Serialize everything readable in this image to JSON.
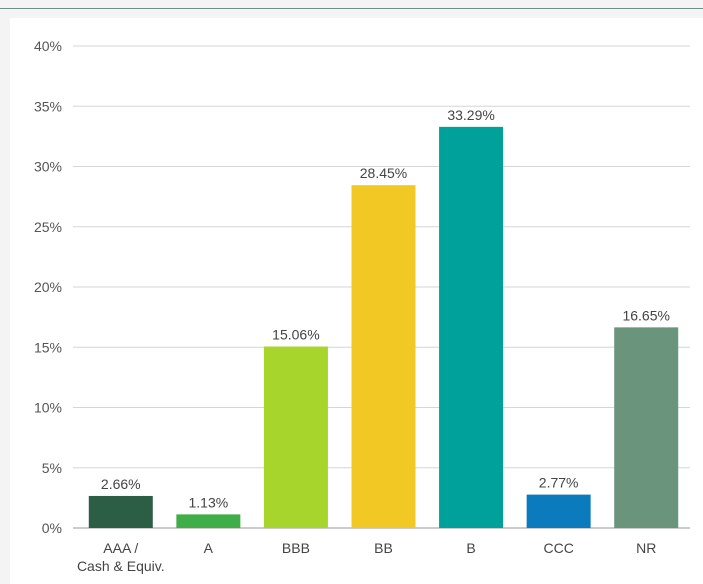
{
  "chart_data": {
    "type": "bar",
    "categories": [
      "AAA / Cash & Equiv.",
      "A",
      "BBB",
      "BB",
      "B",
      "CCC",
      "NR"
    ],
    "category_lines": [
      [
        "AAA /",
        "Cash & Equiv."
      ],
      [
        "A"
      ],
      [
        "BBB"
      ],
      [
        "BB"
      ],
      [
        "B"
      ],
      [
        "CCC"
      ],
      [
        "NR"
      ]
    ],
    "values": [
      2.66,
      1.13,
      15.06,
      28.45,
      33.29,
      2.77,
      16.65
    ],
    "value_labels": [
      "2.66%",
      "1.13%",
      "15.06%",
      "28.45%",
      "33.29%",
      "2.77%",
      "16.65%"
    ],
    "colors": [
      "#2c5e45",
      "#3fae49",
      "#a8d52c",
      "#f2c924",
      "#00a19a",
      "#0c7bbd",
      "#6a947c"
    ],
    "ylim": [
      0,
      40
    ],
    "yticks": [
      0,
      5,
      10,
      15,
      20,
      25,
      30,
      35,
      40
    ],
    "ytick_labels": [
      "0%",
      "5%",
      "10%",
      "15%",
      "20%",
      "25%",
      "30%",
      "35%",
      "40%"
    ],
    "grid": true,
    "title": "",
    "xlabel": "",
    "ylabel": ""
  }
}
